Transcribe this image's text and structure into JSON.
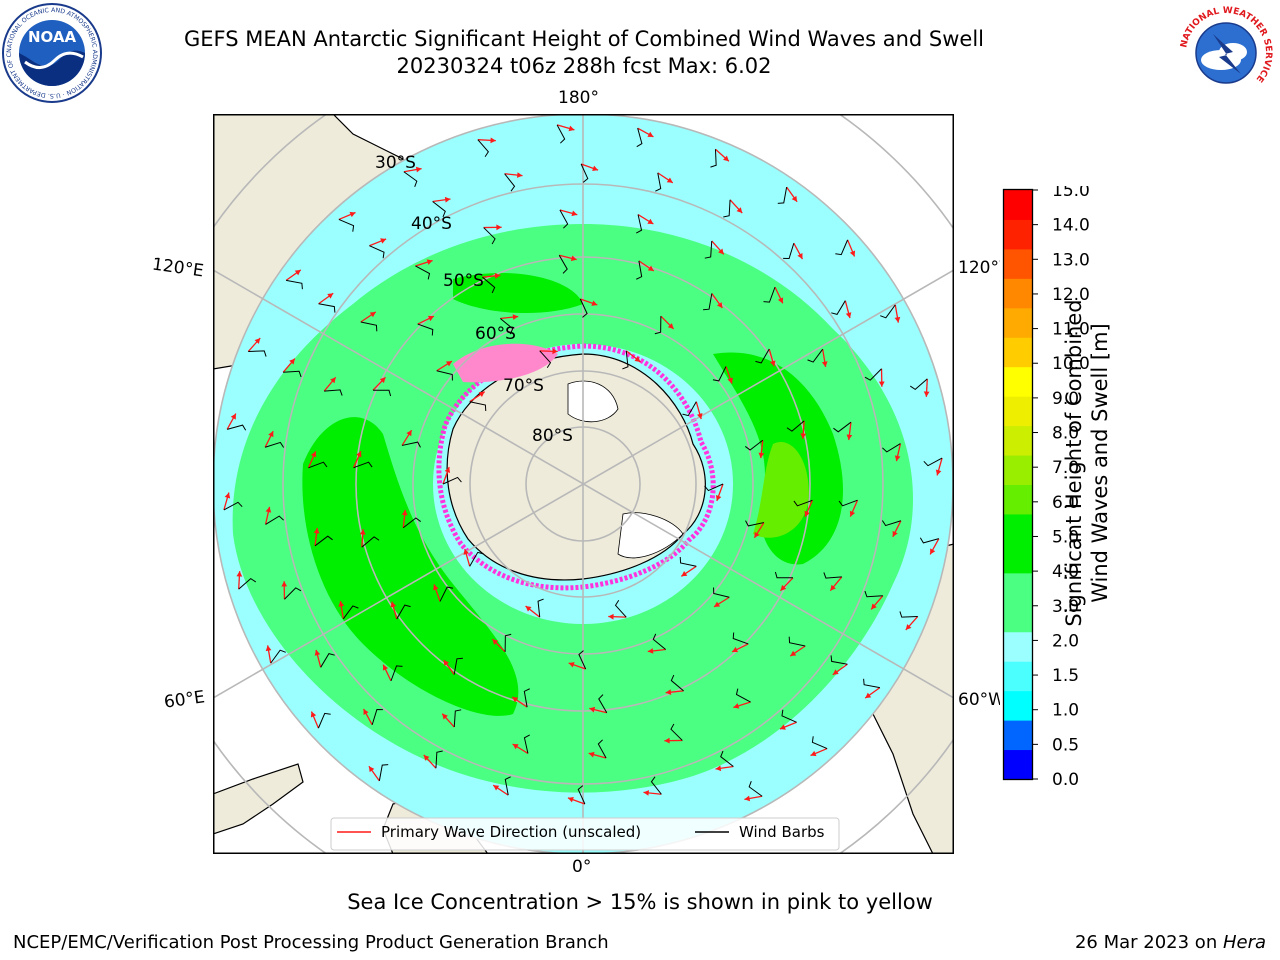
{
  "title": {
    "line1": "GEFS MEAN Antarctic Significant Height of Combined Wind Waves and Swell",
    "line2": "20230324 t06z 288h fcst   Max: 6.02"
  },
  "logos": {
    "noaa_text": "NOAA",
    "noaa_ring": "NATIONAL OCEANIC AND ATMOSPHERIC ADMINISTRATION · U.S. DEPARTMENT OF COMMERCE",
    "nws_ring": "NATIONAL WEATHER SERVICE"
  },
  "map": {
    "lon_labels": {
      "top": "180°",
      "bottom": "0°",
      "upper_left": "120°E",
      "lower_left": "60°E",
      "upper_right": "120°W",
      "lower_right": "60°W"
    },
    "lat_labels": [
      "30°S",
      "40°S",
      "50°S",
      "60°S",
      "70°S",
      "80°S"
    ],
    "legend": {
      "wave": "Primary Wave Direction (unscaled)",
      "barb": "Wind Barbs"
    },
    "colors": {
      "land": "#eeebdb",
      "wave_0_5": "#0000ff",
      "wave_1_0": "#0066ff",
      "wave_1_5": "#00ffff",
      "wave_2_0": "#4bffff",
      "wave_3_0": "#9bffff",
      "wave_4_0": "#4bff82",
      "wave_5_0": "#00ee00",
      "wave_6_0": "#66ee00",
      "ice": "#ff33dd",
      "arrow": "#ff1a1a"
    }
  },
  "colorbar": {
    "label_line1": "Significant Height of Combined",
    "label_line2": "Wind Waves and Swell [m]",
    "ticks": [
      "15.0",
      "14.0",
      "13.0",
      "12.0",
      "11.0",
      "10.0",
      "9.0",
      "8.0",
      "7.0",
      "6.0",
      "5.0",
      "4.0",
      "3.0",
      "2.0",
      "1.5",
      "1.0",
      "0.5",
      "0.0"
    ],
    "colors": [
      "#0000ff",
      "#0066ff",
      "#00ffff",
      "#4bffff",
      "#9bffff",
      "#4bff82",
      "#4bff82",
      "#00ee00",
      "#00ee00",
      "#66ee00",
      "#99ee00",
      "#ccee00",
      "#eeee00",
      "#ffff00",
      "#ffcc00",
      "#ffaa00",
      "#ff8800",
      "#ff5500",
      "#ff2200",
      "#ff0000"
    ]
  },
  "note": "Sea Ice Concentration > 15% is shown in pink to yellow",
  "footer": {
    "left": "NCEP/EMC/Verification Post Processing Product Generation Branch",
    "right_prefix": "26 Mar 2023 on ",
    "right_host": "Hera"
  }
}
